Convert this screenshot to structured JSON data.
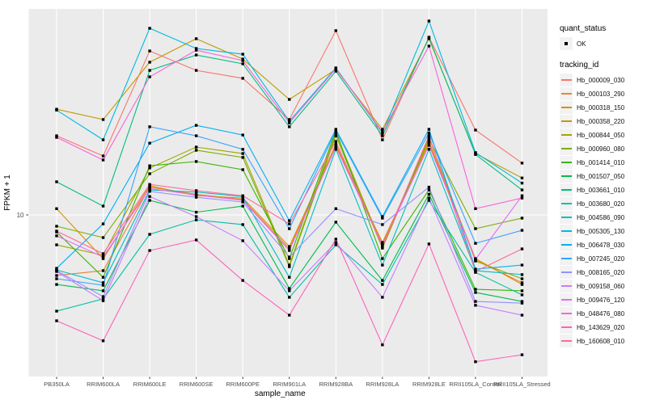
{
  "legend": {
    "quant_status_title": "quant_status",
    "ok_label": "OK",
    "tracking_title": "tracking_id"
  },
  "style_colors": {
    "panel_background": "#EBEBEB",
    "grid_line": "#FFFFFF",
    "legend_key_background": "#F2F2F2",
    "tick_text": "#4D4D4D",
    "marker": "#000000"
  },
  "chart_data": {
    "type": "line",
    "title": "",
    "xlabel": "sample_name",
    "ylabel": "FPKM + 1",
    "y_scale": "log10",
    "y_ticks": [
      10
    ],
    "ylim": [
      2,
      85
    ],
    "grid": "on",
    "legend_position": "right",
    "marker": "black-square",
    "quant_status": "OK",
    "categories": [
      "PB350LA",
      "RRIM600LA",
      "RRIM600LE",
      "RRIM600SE",
      "RRIM600PE",
      "RRIM901LA",
      "RRIM928BA",
      "RRIM928LA",
      "RRIM928LE",
      "RRII105LA_Control",
      "RRII105LA_Stressed"
    ],
    "series": [
      {
        "name": "Hb_000009_030",
        "color": "#F8766D",
        "values": [
          23.5,
          18.9,
          58.7,
          47.6,
          43.7,
          28.0,
          73.1,
          22.5,
          68.1,
          25.0,
          17.5
        ]
      },
      {
        "name": "Hb_000103_290",
        "color": "#EA8331",
        "values": [
          5.2,
          5.48,
          13.5,
          12.5,
          11.8,
          6.93,
          21.5,
          7.31,
          22.1,
          6.14,
          4.81
        ]
      },
      {
        "name": "Hb_000318_150",
        "color": "#D89000",
        "values": [
          10.7,
          6.24,
          13.7,
          12.3,
          12.0,
          7.11,
          21.2,
          7.43,
          21.7,
          6.24,
          4.72
        ]
      },
      {
        "name": "Hb_000358_220",
        "color": "#C09B00",
        "values": [
          31.3,
          28.0,
          52.0,
          67.0,
          53.8,
          34.8,
          48.1,
          25.2,
          67.0,
          19.4,
          14.9
        ]
      },
      {
        "name": "Hb_000844_050",
        "color": "#A3A500",
        "values": [
          7.24,
          6.47,
          16.6,
          20.8,
          19.4,
          5.82,
          24.2,
          7.11,
          23.1,
          6.08,
          5.02
        ]
      },
      {
        "name": "Hb_000960_080",
        "color": "#7CAE00",
        "values": [
          8.85,
          7.83,
          15.6,
          20.1,
          18.6,
          5.72,
          23.5,
          6.99,
          22.7,
          8.62,
          9.66
        ]
      },
      {
        "name": "Hb_001414_010",
        "color": "#39B600",
        "values": [
          8.32,
          5.1,
          17.0,
          17.8,
          16.3,
          6.24,
          24.8,
          6.24,
          13.1,
          4.48,
          4.41
        ]
      },
      {
        "name": "Hb_001507_050",
        "color": "#00BB4E",
        "values": [
          4.72,
          4.41,
          11.7,
          10.3,
          11.0,
          4.52,
          9.25,
          4.93,
          12.5,
          4.33,
          3.93
        ]
      },
      {
        "name": "Hb_003661_010",
        "color": "#00BF7D",
        "values": [
          14.3,
          11.0,
          47.6,
          56.2,
          51.1,
          25.9,
          47.2,
          23.5,
          67.6,
          19.2,
          13.1
        ]
      },
      {
        "name": "Hb_003680_020",
        "color": "#00C1A3",
        "values": [
          3.54,
          4.04,
          8.11,
          9.48,
          9.01,
          4.11,
          7.24,
          4.72,
          11.7,
          5.38,
          4.22
        ]
      },
      {
        "name": "Hb_004586_090",
        "color": "#00BFC4",
        "values": [
          5.52,
          4.81,
          13.1,
          12.8,
          12.2,
          5.1,
          20.3,
          5.82,
          20.3,
          5.48,
          5.25
        ]
      },
      {
        "name": "Hb_005305_130",
        "color": "#00BAE0",
        "values": [
          31.0,
          22.5,
          75.0,
          60.3,
          56.7,
          27.5,
          48.9,
          24.2,
          81.1,
          19.6,
          14.1
        ]
      },
      {
        "name": "Hb_006478_030",
        "color": "#00B0F6",
        "values": [
          5.62,
          9.08,
          21.7,
          26.3,
          23.7,
          9.4,
          25.2,
          9.82,
          25.2,
          5.57,
          5.82
        ]
      },
      {
        "name": "Hb_007245_020",
        "color": "#35A2FF",
        "values": [
          5.02,
          4.68,
          25.9,
          23.5,
          20.3,
          8.62,
          24.8,
          9.66,
          24.2,
          7.36,
          8.47
        ]
      },
      {
        "name": "Hb_008165_020",
        "color": "#9590FF",
        "values": [
          5.48,
          4.14,
          12.9,
          12.1,
          11.5,
          6.35,
          10.7,
          9.01,
          13.5,
          3.93,
          3.86
        ]
      },
      {
        "name": "Hb_009158_060",
        "color": "#C77CFF",
        "values": [
          5.43,
          3.96,
          12.2,
          9.82,
          7.57,
          4.41,
          7.43,
          4.11,
          12.0,
          3.77,
          3.39
        ]
      },
      {
        "name": "Hb_009476_120",
        "color": "#E76BF3",
        "values": [
          7.98,
          6.35,
          13.3,
          12.4,
          11.7,
          6.81,
          20.8,
          7.24,
          21.2,
          6.19,
          12.3
        ]
      },
      {
        "name": "Hb_048476_080",
        "color": "#FA62DB",
        "values": [
          23.1,
          18.1,
          44.4,
          59.2,
          52.9,
          27.0,
          48.5,
          24.5,
          61.9,
          10.7,
          12.0
        ]
      },
      {
        "name": "Hb_143629_020",
        "color": "#FF62BC",
        "values": [
          3.19,
          2.57,
          6.81,
          7.63,
          4.93,
          3.39,
          7.7,
          2.46,
          7.31,
          2.05,
          2.21
        ]
      },
      {
        "name": "Hb_160608_010",
        "color": "#FF6A98",
        "values": [
          8.4,
          6.58,
          13.9,
          13.0,
          12.3,
          9.08,
          22.1,
          7.11,
          23.5,
          5.43,
          6.93
        ]
      }
    ]
  }
}
